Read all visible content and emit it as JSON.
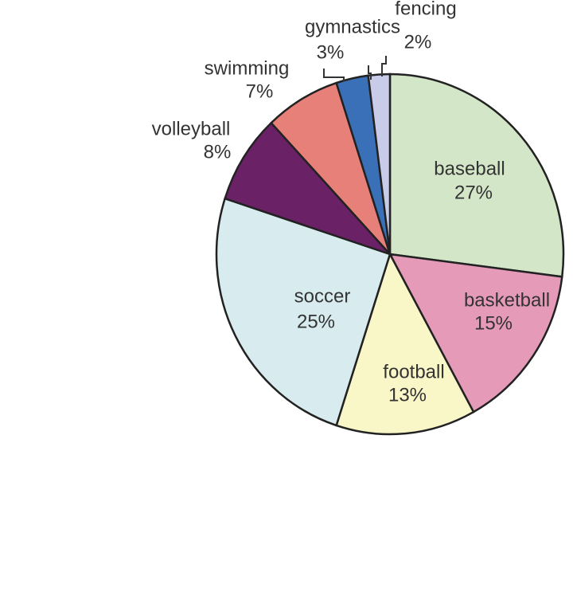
{
  "chart_data": {
    "type": "pie",
    "categories": [
      "baseball",
      "basketball",
      "football",
      "soccer",
      "volleyball",
      "swimming",
      "gymnastics",
      "fencing"
    ],
    "values": [
      27,
      15,
      13,
      25,
      8,
      7,
      3,
      2
    ],
    "value_labels": [
      "27%",
      "15%",
      "13%",
      "25%",
      "8%",
      "7%",
      "3%",
      "2%"
    ],
    "colors": [
      "#d4e6c8",
      "#e59ab8",
      "#f9f6c8",
      "#d8ecef",
      "#6b2166",
      "#e8807a",
      "#3a70b8",
      "#c8cce8"
    ]
  }
}
